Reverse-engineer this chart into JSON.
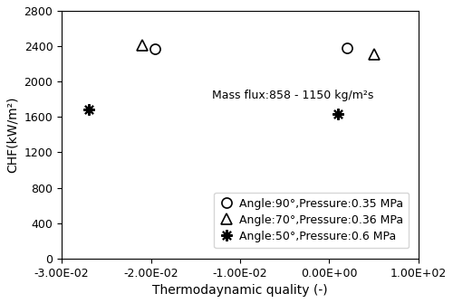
{
  "series": [
    {
      "label": "Angle:90°,Pressure:0.35 MPa",
      "marker": "o",
      "x": [
        -0.0195,
        0.002
      ],
      "y": [
        2370,
        2380
      ],
      "markersize": 8,
      "color": "black",
      "fillstyle": "none",
      "markeredgewidth": 1.2
    },
    {
      "label": "Angle:70°,Pressure:0.36 MPa",
      "marker": "^",
      "x": [
        -0.021,
        0.005
      ],
      "y": [
        2415,
        2310
      ],
      "markersize": 9,
      "color": "black",
      "fillstyle": "none",
      "markeredgewidth": 1.2
    },
    {
      "label": "Angle:50°,Pressure:0.6 MPa",
      "marker": "x",
      "x": [
        -0.027,
        0.001
      ],
      "y": [
        1680,
        1635
      ],
      "markersize": 9,
      "color": "black",
      "fillstyle": "none",
      "markeredgewidth": 1.5
    }
  ],
  "annotation": "Mass flux:858 - 1150 kg/m²s",
  "xlabel": "Thermodaynamic quality (-)",
  "ylabel": "CHF(kW/m²)",
  "xlim": [
    -0.03,
    0.01
  ],
  "ylim": [
    0,
    2800
  ],
  "xticks": [
    -0.03,
    -0.02,
    -0.01,
    0.0,
    0.01
  ],
  "yticks": [
    0,
    400,
    800,
    1200,
    1600,
    2000,
    2400,
    2800
  ],
  "background_color": "#ffffff"
}
